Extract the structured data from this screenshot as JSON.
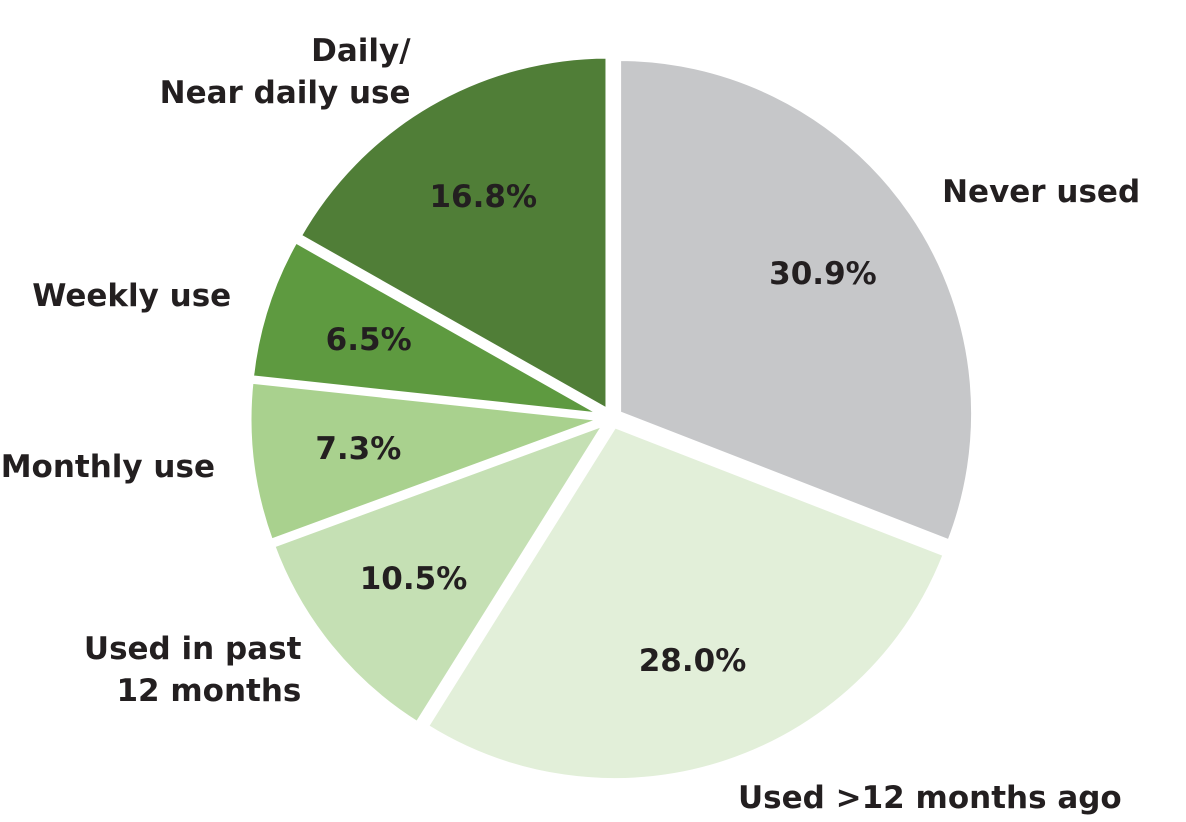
{
  "chart_data": {
    "type": "pie",
    "categories": [
      "Never used",
      "Used >12 months ago",
      "Used in past\n12 months",
      "Monthly use",
      "Weekly use",
      "Daily/\nNear daily use"
    ],
    "values": [
      30.9,
      28.0,
      10.5,
      7.3,
      6.5,
      16.8
    ],
    "value_labels": [
      "30.9%",
      "28.0%",
      "10.5%",
      "7.3%",
      "6.5%",
      "16.8%"
    ],
    "colors": [
      "#c6c7c9",
      "#e2efd9",
      "#c5e0b4",
      "#a9d18e",
      "#5e9a40",
      "#507e37"
    ]
  }
}
